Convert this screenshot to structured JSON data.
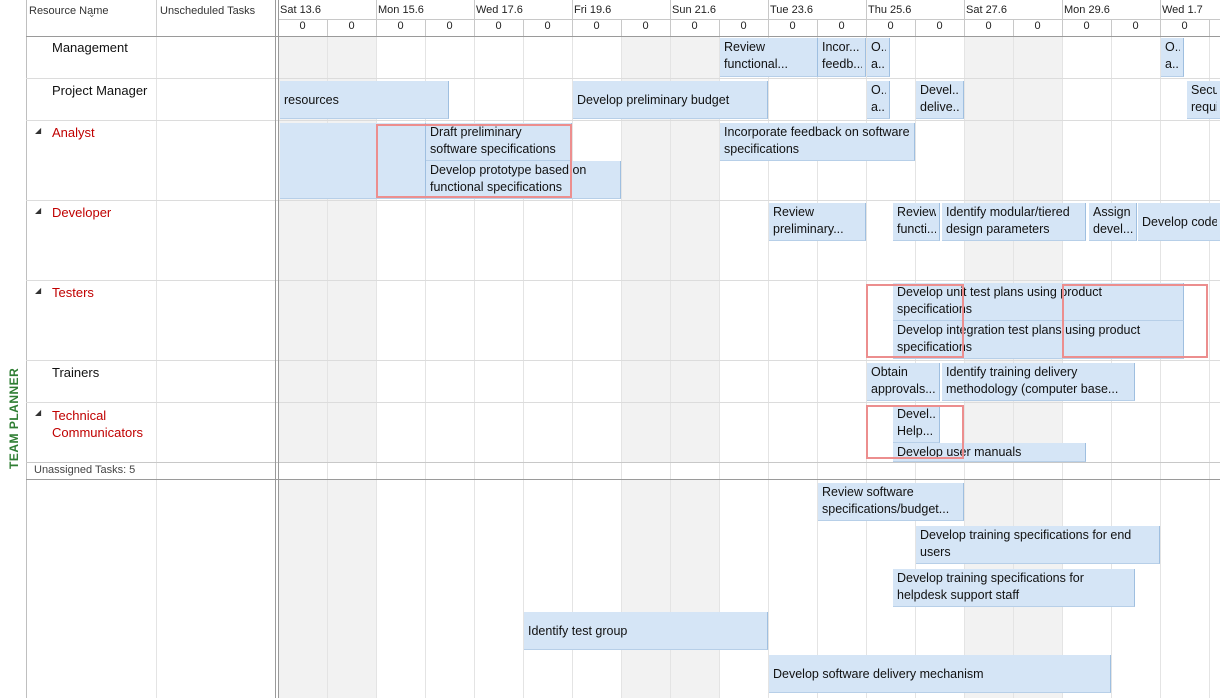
{
  "app": {
    "view_label": "TEAM PLANNER"
  },
  "header": {
    "resource_name_label": "Resource Name",
    "unscheduled_label": "Unscheduled Tasks",
    "dates": [
      "Sat 13.6",
      "Mon 15.6",
      "Wed 17.6",
      "Fri 19.6",
      "Sun 21.6",
      "Tue 23.6",
      "Thu 25.6",
      "Sat 27.6",
      "Mon 29.6",
      "Wed 1.7"
    ],
    "hour_value": "0"
  },
  "resources": [
    {
      "name": "Management",
      "color": "#111111",
      "collapsible": false
    },
    {
      "name": "Project Manager",
      "color": "#111111",
      "collapsible": false
    },
    {
      "name": "Analyst",
      "color": "#c00000",
      "collapsible": true
    },
    {
      "name": "Developer",
      "color": "#c00000",
      "collapsible": true
    },
    {
      "name": "Testers",
      "color": "#c00000",
      "collapsible": true
    },
    {
      "name": "Trainers",
      "color": "#111111",
      "collapsible": false
    },
    {
      "name": "Technical Communicators",
      "color": "#c00000",
      "collapsible": true
    }
  ],
  "unassigned": {
    "label": "Unassigned Tasks: 5"
  },
  "tasks": {
    "mgmt_1": "Review functional...",
    "mgmt_2": "Incor... feedb...",
    "mgmt_3": "O... a...",
    "mgmt_4": "O... a...",
    "pm_1": "resources",
    "pm_2": "Develop preliminary budget",
    "pm_3": "O... a...",
    "pm_4": "Devel... delive...",
    "pm_5": "Secu... requi...",
    "an_1": "Draft preliminary software specifications",
    "an_2": "Develop prototype based on functional specifications",
    "an_3": "Incorporate feedback on software specifications",
    "dev_1": "Review preliminary...",
    "dev_2": "Review functi...",
    "dev_3": "Identify modular/tiered design parameters",
    "dev_4": "Assign devel...",
    "dev_5": "Develop code",
    "test_1": "Develop unit test plans using product specifications",
    "test_2": "Develop integration test plans using product specifications",
    "tr_1": "Obtain approvals...",
    "tr_2": "Identify training delivery methodology (computer base...",
    "tc_1": "Devel... Help...",
    "tc_2": "Develop user manuals",
    "un_1": "Review software specifications/budget...",
    "un_2": "Develop training specifications for end users",
    "un_3": "Develop training specifications for helpdesk support staff",
    "un_4": "Identify test group",
    "un_5": "Develop software delivery mechanism"
  },
  "colors": {
    "task_fill": "#d5e5f6",
    "overallocation": "#ec8e8e",
    "weekend_shade": "#f2f2f2",
    "accent_green": "#2e7d32"
  }
}
